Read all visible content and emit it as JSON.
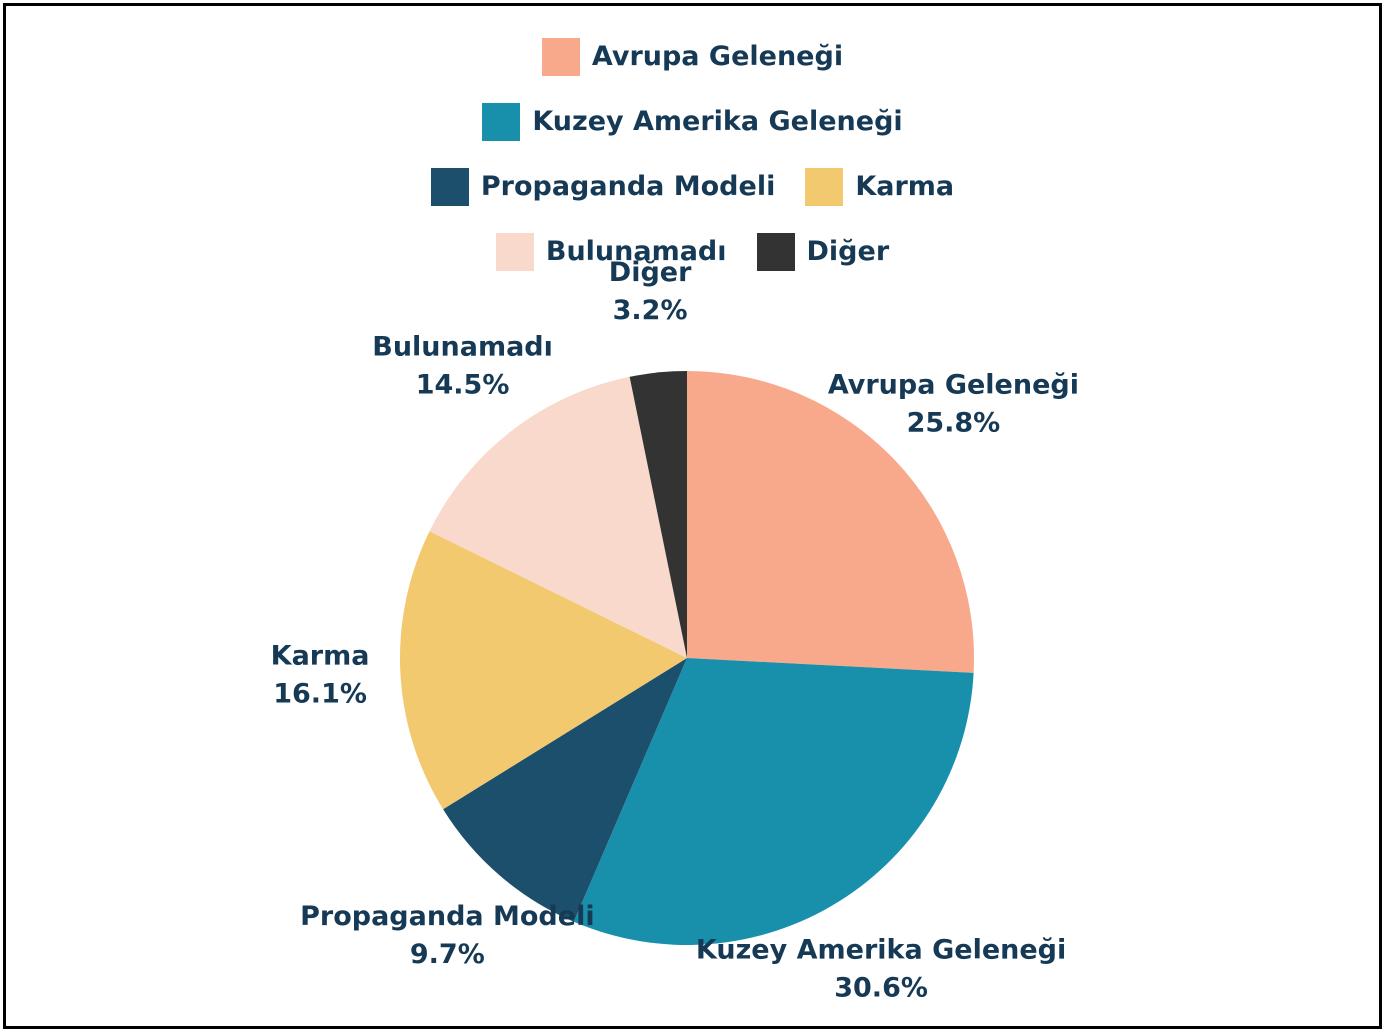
{
  "chart_data": {
    "type": "pie",
    "categories": [
      "Avrupa Geleneği",
      "Kuzey Amerika Geleneği",
      "Propaganda Modeli",
      "Karma",
      "Bulunamadı",
      "Diğer"
    ],
    "values": [
      25.8,
      30.6,
      9.7,
      16.1,
      14.5,
      3.2
    ],
    "value_labels": [
      "25.8%",
      "30.6%",
      "9.7%",
      "16.1%",
      "14.5%",
      "3.2%"
    ],
    "colors": [
      "#f9a98b",
      "#1890ac",
      "#1c4f6b",
      "#f2c96f",
      "#f8d9cc",
      "#333333"
    ],
    "legend": "top"
  }
}
